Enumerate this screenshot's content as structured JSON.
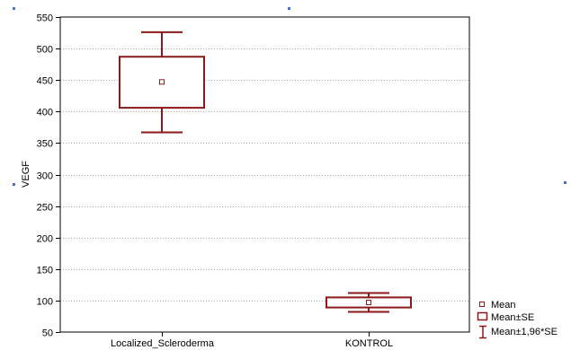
{
  "chart_data": {
    "type": "boxplot",
    "title": "",
    "xlabel": "",
    "ylabel": "VEGF",
    "ylim": [
      50,
      550
    ],
    "yticks": [
      50,
      100,
      150,
      200,
      250,
      300,
      350,
      400,
      450,
      500,
      550
    ],
    "grid": true,
    "legend_position": "bottom-right",
    "categories": [
      "Localized_Scleroderma",
      "KONTROL"
    ],
    "boxes": [
      {
        "category": "Localized_Scleroderma",
        "mean": 447,
        "se_low": 406,
        "se_high": 487,
        "ci_low": 367,
        "ci_high": 526
      },
      {
        "category": "KONTROL",
        "mean": 97,
        "se_low": 89,
        "se_high": 105,
        "ci_low": 82,
        "ci_high": 112
      }
    ],
    "legend": [
      {
        "symbol": "mean-marker",
        "label": "Mean"
      },
      {
        "symbol": "box",
        "label": "Mean±SE"
      },
      {
        "symbol": "whisker",
        "label": "Mean±1,96*SE"
      }
    ],
    "colors": {
      "series": "#8b1a1a",
      "axis": "#000000",
      "grid": "#8c8c8c",
      "handle": "#4472c4"
    }
  }
}
